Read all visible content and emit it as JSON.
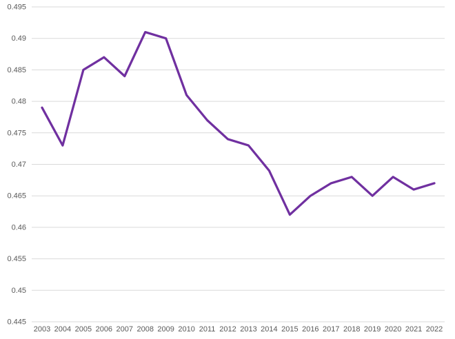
{
  "chart_data": {
    "type": "line",
    "title": "",
    "x_labels": [
      "2003",
      "2004",
      "2005",
      "2006",
      "2007",
      "2008",
      "2009",
      "2010",
      "2011",
      "2012",
      "2013",
      "2014",
      "2015",
      "2016",
      "2017",
      "2018",
      "2019",
      "2020",
      "2021",
      "2022"
    ],
    "values": [
      0.479,
      0.473,
      0.485,
      0.487,
      0.484,
      0.491,
      0.49,
      0.481,
      0.477,
      0.474,
      0.473,
      0.469,
      0.462,
      0.465,
      0.467,
      0.468,
      0.465,
      0.468,
      0.466,
      0.467
    ],
    "ylim": [
      0.445,
      0.495
    ],
    "yticks": [
      0.445,
      0.45,
      0.455,
      0.46,
      0.465,
      0.47,
      0.475,
      0.48,
      0.485,
      0.49,
      0.495
    ],
    "ytick_labels": [
      "0.445",
      "0.45",
      "0.455",
      "0.46",
      "0.465",
      "0.47",
      "0.475",
      "0.48",
      "0.485",
      "0.49",
      "0.495"
    ],
    "grid": "horizontal",
    "legend": "none",
    "xlabel": "",
    "ylabel": "",
    "colors": {
      "line": "#7030A0",
      "gridline": "#D9D9D9",
      "tick_text": "#595959",
      "background": "#FFFFFF"
    }
  }
}
